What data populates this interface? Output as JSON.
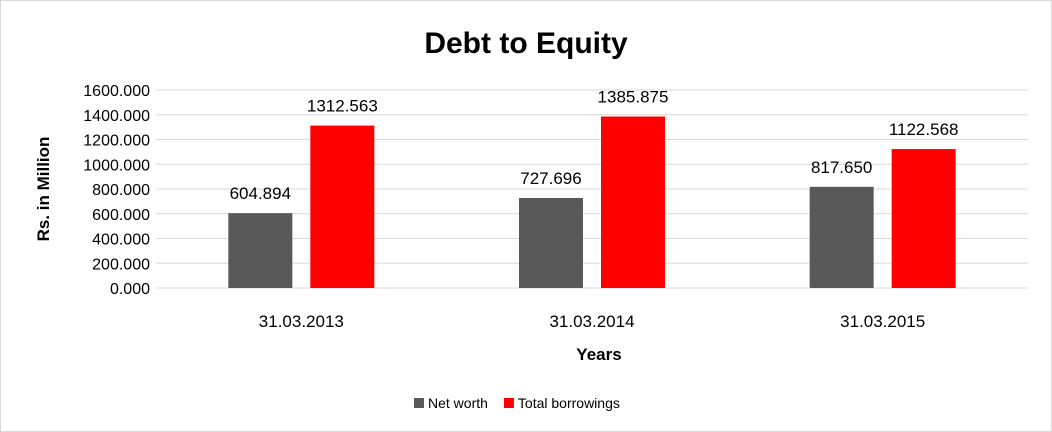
{
  "chart_data": {
    "type": "bar",
    "title": "Debt to Equity",
    "xlabel": "Years",
    "ylabel": "Rs. in Million",
    "categories": [
      "31.03.2013",
      "31.03.2014",
      "31.03.2015"
    ],
    "series": [
      {
        "name": "Net worth",
        "values": [
          604.894,
          727.696,
          817.65
        ],
        "value_labels": [
          "604.894",
          "727.696",
          "817.650"
        ],
        "color": "#595959"
      },
      {
        "name": "Total borrowings",
        "values": [
          1312.563,
          1385.875,
          1122.568
        ],
        "value_labels": [
          "1312.563",
          "1385.875",
          "1122.568"
        ],
        "color": "#ff0000"
      }
    ],
    "ylim": [
      0,
      1600
    ],
    "yticks": [
      0,
      200,
      400,
      600,
      800,
      1000,
      1200,
      1400,
      1600
    ],
    "ytick_labels": [
      "0.000",
      "200.000",
      "400.000",
      "600.000",
      "800.000",
      "1000.000",
      "1200.000",
      "1400.000",
      "1600.000"
    ],
    "grid": true,
    "gridline_color": "#d9d9d9",
    "legend_position": "bottom",
    "data_labels": true
  }
}
